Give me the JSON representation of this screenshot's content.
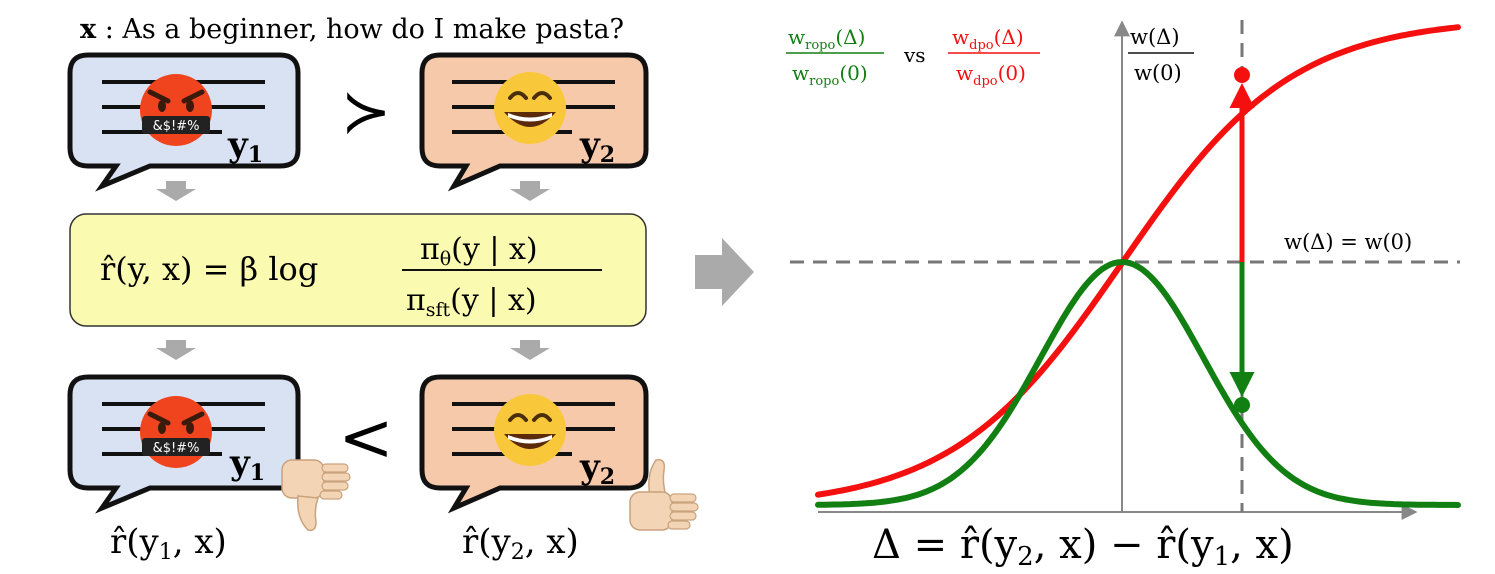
{
  "prompt": {
    "var": "x",
    "text": " : As a beginner,  how do I make pasta?"
  },
  "responses": {
    "y1_label": "y",
    "y1_sub": "1",
    "y2_label": "y",
    "y2_sub": "2",
    "profanity": "&$!#%",
    "pref_top": "≻",
    "pref_bottom": "<"
  },
  "reward_formula": {
    "lhs": "r̂(y, x) = β log",
    "num": "π",
    "num_sub": "θ",
    "num_arg": "(y | x)",
    "den": "π",
    "den_sub": "sft",
    "den_arg": "(y | x)"
  },
  "rewards": {
    "r1": "r̂(y",
    "r1_sub": "1",
    "r1_tail": ", x)",
    "r2": "r̂(y",
    "r2_sub": "2",
    "r2_tail": ", x)"
  },
  "plot": {
    "legend_green_num": "w",
    "legend_green_num_sub": "ropo",
    "legend_green_num_arg": "(Δ)",
    "legend_green_den": "w",
    "legend_green_den_sub": "ropo",
    "legend_green_den_arg": "(0)",
    "legend_vs": "vs",
    "legend_red_num": "w",
    "legend_red_num_sub": "dpo",
    "legend_red_num_arg": "(Δ)",
    "legend_red_den": "w",
    "legend_red_den_sub": "dpo",
    "legend_red_den_arg": "(0)",
    "yaxis_num": "w(Δ)",
    "yaxis_den": "w(0)",
    "hline_label": "w(Δ) = w(0)",
    "xaxis_lhs": "Δ = r̂(y",
    "xaxis_sub2": "2",
    "xaxis_mid": ", x) − r̂(y",
    "xaxis_sub1": "1",
    "xaxis_tail": ", x)",
    "colors": {
      "green": "#127f12",
      "red": "#f51010",
      "axis": "#888888",
      "dash": "#777777"
    }
  }
}
